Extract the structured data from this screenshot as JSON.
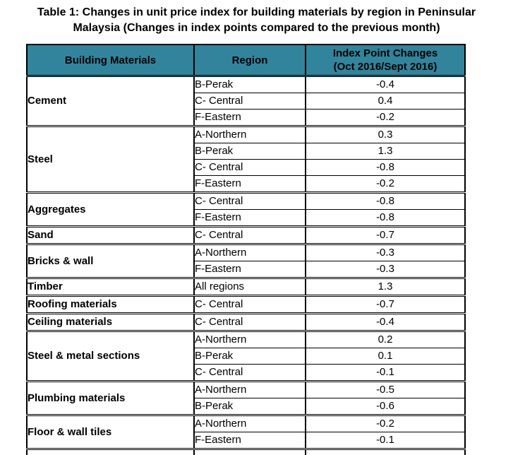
{
  "title": {
    "line1": "Table 1: Changes in unit price index for building materials by region in Peninsular",
    "line2": "Malaysia (Changes in index points compared to the previous month)"
  },
  "table": {
    "header_bg": "#31849B",
    "border_color": "#000000",
    "headers": [
      "Building Materials",
      "Region",
      "Index Point Changes\n(Oct 2016/Sept 2016)"
    ],
    "groups": [
      {
        "material": "Cement",
        "rows": [
          {
            "region": "B-Perak",
            "value": "-0.4"
          },
          {
            "region": "C- Central",
            "value": "0.4"
          },
          {
            "region": "F-Eastern",
            "value": "-0.2"
          }
        ]
      },
      {
        "material": "Steel",
        "rows": [
          {
            "region": "A-Northern",
            "value": "0.3"
          },
          {
            "region": "B-Perak",
            "value": "1.3"
          },
          {
            "region": "C- Central",
            "value": "-0.8"
          },
          {
            "region": "F-Eastern",
            "value": "-0.2"
          }
        ]
      },
      {
        "material": "Aggregates",
        "rows": [
          {
            "region": "C- Central",
            "value": "-0.8"
          },
          {
            "region": "F-Eastern",
            "value": "-0.8"
          }
        ]
      },
      {
        "material": "Sand",
        "rows": [
          {
            "region": "C- Central",
            "value": "-0.7"
          }
        ]
      },
      {
        "material": "Bricks & wall",
        "rows": [
          {
            "region": "A-Northern",
            "value": "-0.3"
          },
          {
            "region": "F-Eastern",
            "value": "-0.3"
          }
        ]
      },
      {
        "material": "Timber",
        "rows": [
          {
            "region": "All regions",
            "value": "1.3"
          }
        ]
      },
      {
        "material": "Roofing materials",
        "rows": [
          {
            "region": "C- Central",
            "value": "-0.7"
          }
        ]
      },
      {
        "material": "Ceiling materials",
        "rows": [
          {
            "region": "C- Central",
            "value": "-0.4"
          }
        ]
      },
      {
        "material": "Steel & metal sections",
        "rows": [
          {
            "region": "A-Northern",
            "value": "0.2"
          },
          {
            "region": "B-Perak",
            "value": "0.1"
          },
          {
            "region": "C- Central",
            "value": "-0.1"
          }
        ]
      },
      {
        "material": "Plumbing materials",
        "rows": [
          {
            "region": "A-Northern",
            "value": "-0.5"
          },
          {
            "region": "B-Perak",
            "value": "-0.6"
          }
        ]
      },
      {
        "material": "Floor & wall tiles",
        "rows": [
          {
            "region": "A-Northern",
            "value": "-0.2"
          },
          {
            "region": "F-Eastern",
            "value": "-0.1"
          }
        ]
      }
    ]
  }
}
